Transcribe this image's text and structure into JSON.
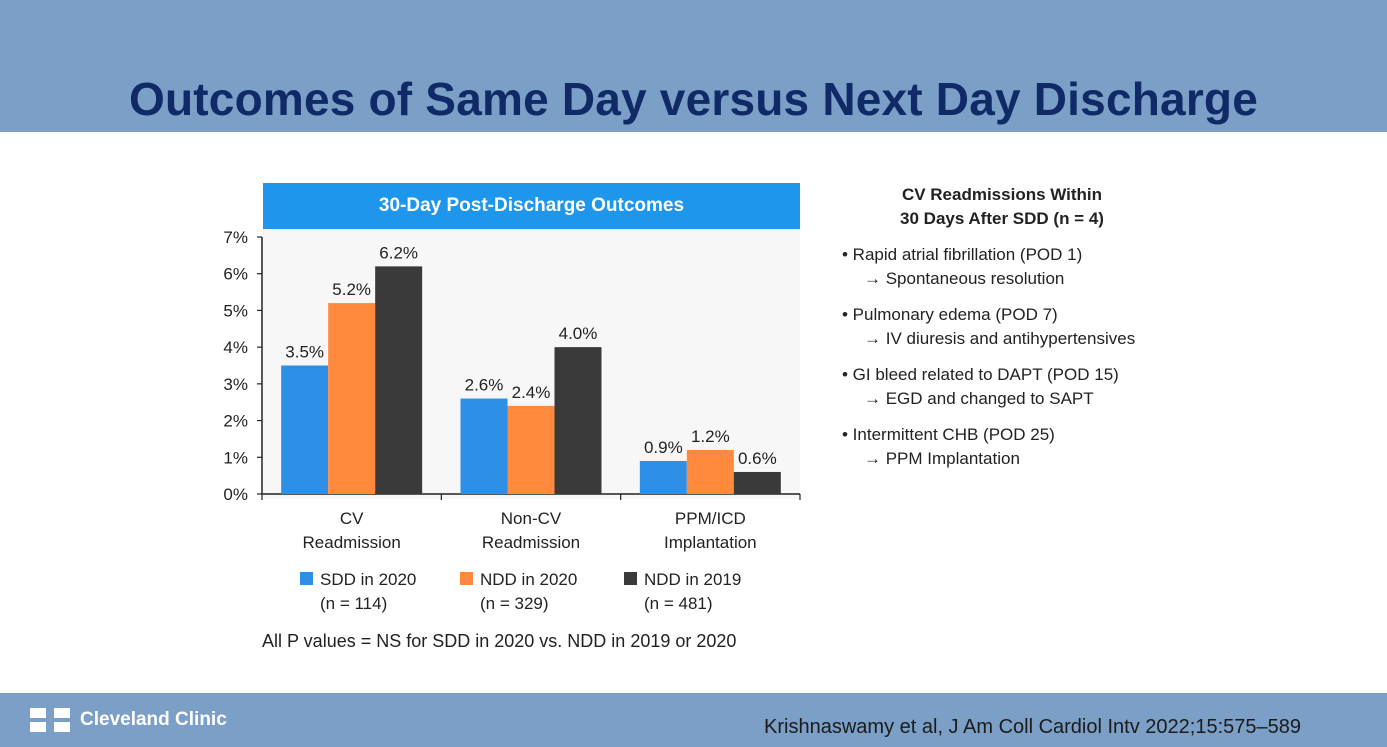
{
  "slide": {
    "title": "Outcomes of Same Day versus Next Day Discharge",
    "logo_text": "Cleveland Clinic",
    "citation": "Krishnaswamy et al, J Am Coll Cardiol Intv 2022;15:575–589",
    "note": "All P values = NS for SDD in 2020 vs. NDD in 2019 or 2020"
  },
  "side": {
    "title_line1": "CV Readmissions Within",
    "title_line2": "30 Days After SDD (n = 4)",
    "items": [
      {
        "main": "• Rapid atrial fibrillation (POD 1)",
        "sub": "→ Spontaneous resolution"
      },
      {
        "main": "• Pulmonary edema (POD 7)",
        "sub": "→ IV diuresis and antihypertensives"
      },
      {
        "main": "• GI bleed related to DAPT (POD 15)",
        "sub": "→ EGD and changed to SAPT"
      },
      {
        "main": "• Intermittent CHB (POD 25)",
        "sub": "→ PPM Implantation"
      }
    ]
  },
  "chart_data": {
    "type": "bar",
    "title": "30-Day Post-Discharge Outcomes",
    "categories": [
      [
        "CV",
        "Readmission"
      ],
      [
        "Non-CV",
        "Readmission"
      ],
      [
        "PPM/ICD",
        "Implantation"
      ]
    ],
    "series": [
      {
        "name": "SDD in 2020",
        "sub": "(n = 114)",
        "color": "#2d8fe6",
        "values": [
          3.5,
          2.6,
          0.9
        ],
        "labels": [
          "3.5%",
          "2.6%",
          "0.9%"
        ]
      },
      {
        "name": "NDD in 2020",
        "sub": "(n = 329)",
        "color": "#ff8a3d",
        "values": [
          5.2,
          2.4,
          1.2
        ],
        "labels": [
          "5.2%",
          "2.4%",
          "1.2%"
        ]
      },
      {
        "name": "NDD in 2019",
        "sub": "(n = 481)",
        "color": "#3a3a3a",
        "values": [
          6.2,
          4.0,
          0.6
        ],
        "labels": [
          "6.2%",
          "4.0%",
          "0.6%"
        ]
      }
    ],
    "yticks": [
      "0%",
      "1%",
      "2%",
      "3%",
      "4%",
      "5%",
      "6%",
      "7%"
    ],
    "ylim": [
      0,
      7
    ],
    "grid": false,
    "legend": "bottom"
  }
}
